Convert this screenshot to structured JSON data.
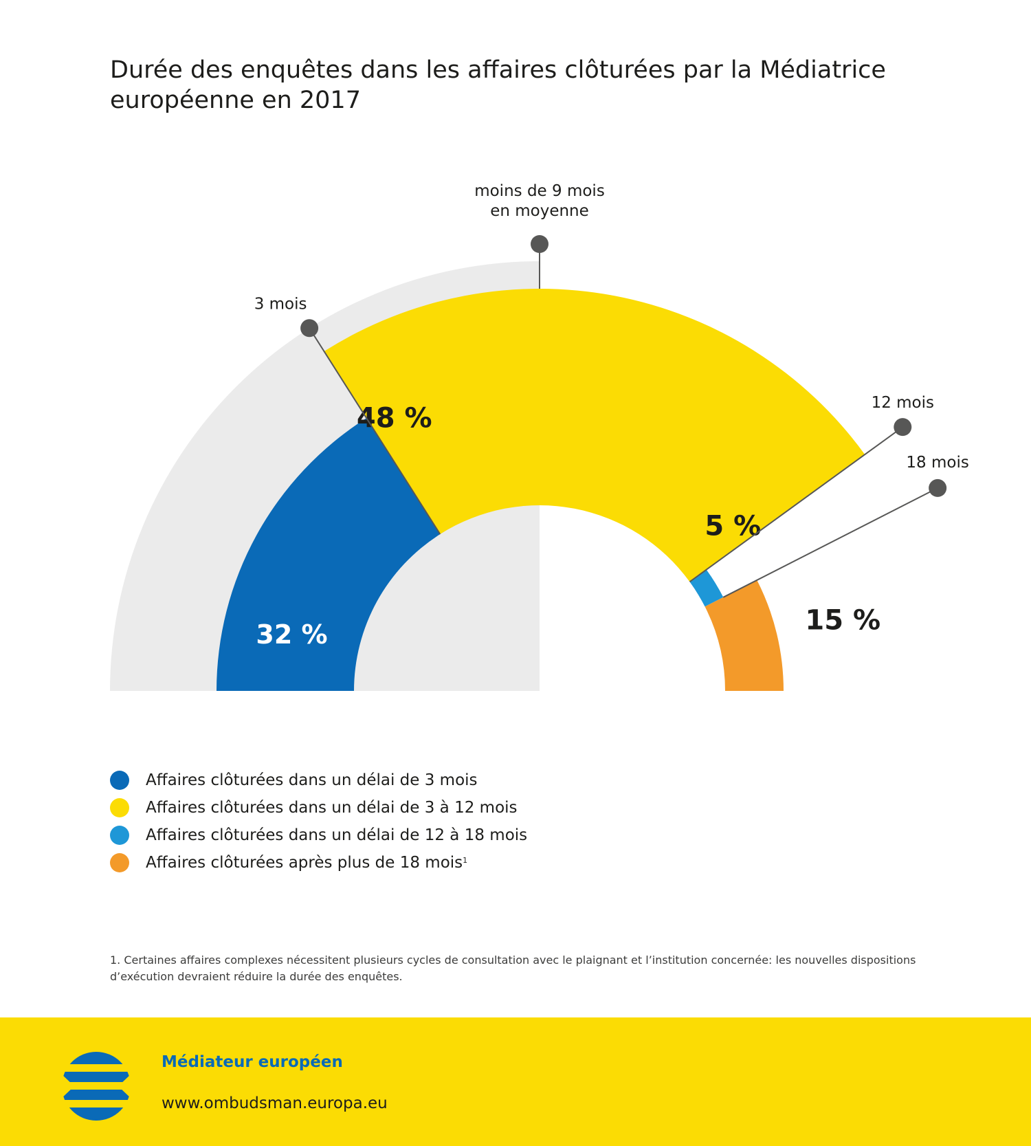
{
  "title": "Durée des enquêtes dans les affaires clôturées par la Médiatrice européenne en 2017",
  "chart_data": {
    "type": "pie",
    "style": "half-donut",
    "segments": [
      {
        "label": "Affaires clôturées dans un délai de 3 mois",
        "value": 32,
        "value_label": "32 %",
        "color": "#0a6ab7"
      },
      {
        "label": "Affaires clôturées dans un délai de 3 à 12 mois",
        "value": 48,
        "value_label": "48 %",
        "color": "#fbdc04"
      },
      {
        "label": "Affaires clôturées dans un délai de 12 à 18 mois",
        "value": 5,
        "value_label": "5 %",
        "color": "#1e97d7"
      },
      {
        "label": "Affaires clôturées après plus de 18 mois",
        "value": 15,
        "value_label": "15 %",
        "color": "#f39a2a"
      }
    ],
    "background_color": "#ebebeb",
    "annotations": [
      {
        "name": "3-mois",
        "text": [
          "3 mois"
        ]
      },
      {
        "name": "moins-de-9-mois",
        "text": [
          "moins de 9 mois",
          "en moyenne"
        ]
      },
      {
        "name": "12-mois",
        "text": [
          "12 mois"
        ]
      },
      {
        "name": "18-mois",
        "text": [
          "18 mois"
        ]
      }
    ],
    "legend_placement": "bottom-left"
  },
  "legend": {
    "items": [
      {
        "label": "Affaires clôturées dans un délai de 3 mois",
        "color": "#0a6ab7",
        "sup": ""
      },
      {
        "label": "Affaires clôturées dans un délai de 3 à 12 mois",
        "color": "#fbdc04",
        "sup": ""
      },
      {
        "label": "Affaires clôturées dans un délai de 12 à 18 mois",
        "color": "#1e97d7",
        "sup": ""
      },
      {
        "label": "Affaires clôturées après plus de 18 mois",
        "color": "#f39a2a",
        "sup": "1"
      }
    ]
  },
  "footnote": "1.  Certaines affaires complexes nécessitent plusieurs cycles de consultation avec le plaignant et l’institution concernée: les nouvelles dispositions d’exécution devraient réduire la durée des enquêtes.",
  "footer": {
    "organization": "Médiateur européen",
    "url": "www.ombudsman.europa.eu",
    "logo_icon": "european-ombudsman-logo"
  }
}
